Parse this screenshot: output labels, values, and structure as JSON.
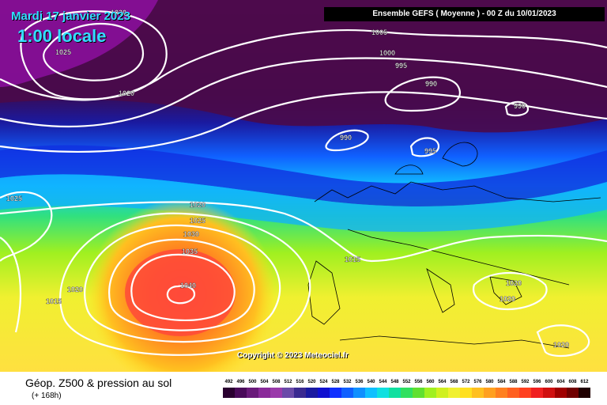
{
  "overlay": {
    "date": "Mardi 17 janvier 2023",
    "time": "1:00 locale",
    "header": "Ensemble GEFS  ( Moyenne )  -  00 Z du 10/01/2023",
    "copyright": "Copyright © 2023 Meteociel.fr"
  },
  "footer": {
    "title": "Géop. Z500 & pression au sol",
    "subtitle": "(+ 168h)"
  },
  "isobar_labels": [
    "1030",
    "1025",
    "1020",
    "1005",
    "1000",
    "995",
    "990",
    "990",
    "990",
    "995",
    "1025",
    "1020",
    "1025",
    "1030",
    "1035",
    "1040",
    "1015",
    "1020",
    "1015",
    "1020",
    "1020",
    "1020"
  ],
  "scale": {
    "values": [
      "492",
      "496",
      "500",
      "504",
      "508",
      "512",
      "516",
      "520",
      "524",
      "528",
      "532",
      "536",
      "540",
      "544",
      "548",
      "552",
      "556",
      "560",
      "564",
      "568",
      "572",
      "576",
      "580",
      "584",
      "588",
      "592",
      "596",
      "600",
      "604",
      "608",
      "612"
    ],
    "colors": [
      "#2a0030",
      "#4a0a5a",
      "#6a1a7a",
      "#8a2a9a",
      "#9a3aaa",
      "#6a4aa8",
      "#3a2a90",
      "#1a1aa0",
      "#1010d0",
      "#1030ff",
      "#1060ff",
      "#1090ff",
      "#10c0ff",
      "#10e0e0",
      "#10e0a0",
      "#30e060",
      "#60e030",
      "#a0f020",
      "#d0f020",
      "#f0f030",
      "#ffe020",
      "#ffc020",
      "#ffa020",
      "#ff8020",
      "#ff6020",
      "#ff4020",
      "#f02020",
      "#d01010",
      "#a00000",
      "#700000",
      "#200000"
    ]
  }
}
